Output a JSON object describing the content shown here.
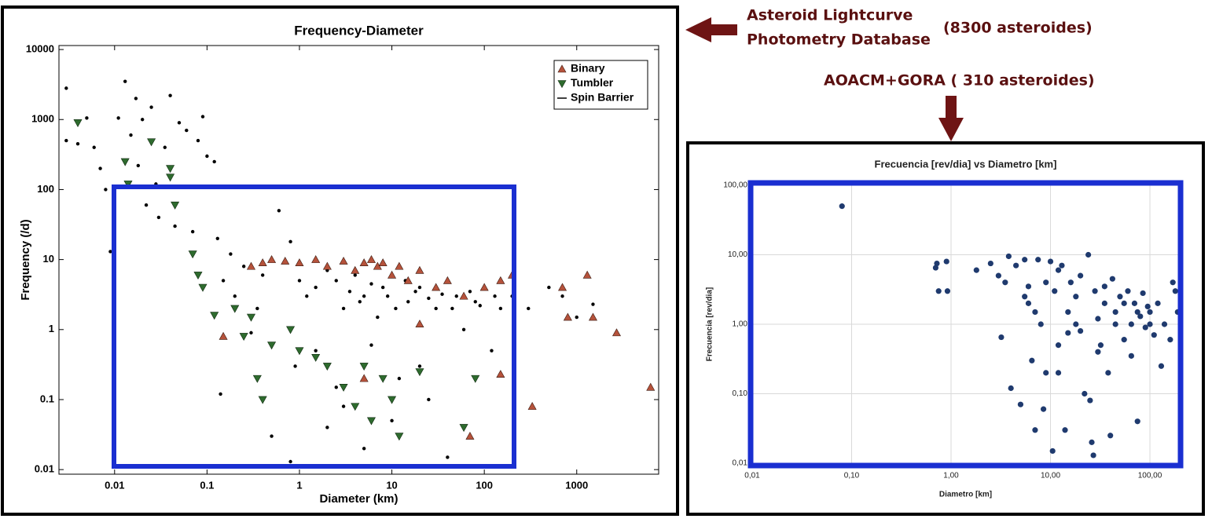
{
  "annotations": [
    "Asteroid Lightcurve",
    "Photometry Database",
    "(8300 asteroides)",
    "AOACM+GORA ( 310 asteroides)"
  ],
  "chart_data": [
    {
      "type": "scatter",
      "title": "Frequency-Diameter",
      "x_label": "Diameter (km)",
      "y_label": "Frequency (/d)",
      "log_x": true,
      "log_y": true,
      "grid": false,
      "legend": "upper right",
      "xlim": [
        0.0025,
        7700
      ],
      "ylim": [
        0.0086,
        11400
      ],
      "xticks": [
        0.01,
        0.1,
        1,
        10,
        100,
        1000
      ],
      "yticks": [
        10000,
        1000,
        100,
        10,
        1,
        0.1,
        0.01
      ],
      "series": [
        {
          "color": "#000000",
          "marker": "dot",
          "x": [
            0.003,
            0.003,
            0.004,
            0.005,
            0.006,
            0.007,
            0.008,
            0.009,
            0.011,
            0.013,
            0.015,
            0.017,
            0.018,
            0.02,
            0.022,
            0.025,
            0.028,
            0.03,
            0.035,
            0.04,
            0.045,
            0.05,
            0.06,
            0.07,
            0.08,
            0.09,
            0.1,
            0.12,
            0.13,
            0.15,
            0.18,
            0.2,
            0.25,
            0.3,
            0.35,
            0.4,
            0.5,
            0.6,
            0.8,
            0.8,
            1,
            1.2,
            1.5,
            2,
            2,
            3,
            3,
            4,
            5,
            5,
            7,
            8,
            10,
            10,
            15,
            20,
            20,
            30,
            40,
            50,
            60,
            80,
            100,
            120,
            150,
            200,
            300,
            500,
            700,
            1000,
            1500,
            0.14,
            0.9,
            2.5,
            6,
            12,
            25,
            1.5,
            2.5,
            3.5,
            4.5,
            6,
            9,
            11,
            14,
            18,
            25,
            35,
            45,
            70,
            90,
            130
          ],
          "values": [
            2800,
            500,
            450,
            1050,
            400,
            200,
            100,
            13,
            1050,
            3500,
            600,
            2000,
            220,
            1000,
            60,
            1500,
            120,
            40,
            400,
            2200,
            30,
            900,
            700,
            25,
            500,
            1100,
            300,
            250,
            20,
            5,
            12,
            3,
            8,
            0.9,
            2,
            6,
            0.03,
            50,
            18,
            0.013,
            5,
            3,
            0.5,
            7,
            0.04,
            2,
            0.08,
            6,
            3,
            0.02,
            1.5,
            4,
            6,
            0.05,
            2.5,
            4,
            0.3,
            2,
            0.015,
            3,
            1,
            2.5,
            4,
            0.5,
            2,
            3,
            2,
            4,
            3,
            1.5,
            2.3,
            0.12,
            0.3,
            0.15,
            0.6,
            0.2,
            0.1,
            4,
            5,
            3.5,
            2.5,
            4.5,
            3,
            2,
            5,
            3.5,
            2.8,
            3.2,
            2,
            3.5,
            2.2,
            3
          ]
        },
        {
          "name": "Binary",
          "color": "#b5523b",
          "marker": "triangle-up",
          "x": [
            0.15,
            0.3,
            0.4,
            0.5,
            0.7,
            1,
            1.5,
            2,
            3,
            4,
            5,
            6,
            7,
            8,
            10,
            12,
            15,
            20,
            30,
            40,
            60,
            100,
            150,
            200,
            700,
            800,
            1300,
            1500,
            2700,
            6300,
            330,
            150,
            70,
            5,
            20
          ],
          "values": [
            0.8,
            8,
            9,
            10,
            9.5,
            9,
            10,
            8,
            9.5,
            7,
            9,
            10,
            8,
            9,
            6,
            8,
            5,
            7,
            4,
            5,
            3,
            4,
            5,
            6,
            4,
            1.5,
            6,
            1.5,
            0.9,
            0.15,
            0.08,
            0.23,
            0.03,
            0.2,
            1.2
          ]
        },
        {
          "name": "Tumbler",
          "color": "#2e6b2e",
          "marker": "triangle-down",
          "x": [
            0.004,
            0.013,
            0.014,
            0.025,
            0.04,
            0.04,
            0.045,
            0.07,
            0.08,
            0.09,
            0.12,
            0.2,
            0.25,
            0.3,
            0.35,
            0.4,
            0.5,
            0.8,
            1,
            1.5,
            2,
            3,
            4,
            5,
            6,
            8,
            10,
            12,
            20,
            60,
            80
          ],
          "values": [
            900,
            250,
            120,
            480,
            200,
            150,
            60,
            12,
            6,
            4,
            1.6,
            2,
            0.8,
            1.5,
            0.2,
            0.1,
            0.6,
            1,
            0.5,
            0.4,
            0.3,
            0.15,
            0.08,
            0.3,
            0.05,
            0.2,
            0.1,
            0.03,
            0.25,
            0.04,
            0.2
          ]
        },
        {
          "name": "Spin Barrier",
          "color": "#000000",
          "marker": "line"
        }
      ]
    },
    {
      "type": "scatter",
      "title": "Frecuencia [rev/dia] vs Diametro [km]",
      "x_label": "Diametro [km]",
      "y_label": "Frecuencia [rev/dia]",
      "log_x": true,
      "log_y": true,
      "grid": true,
      "xlim": [
        0.01,
        196
      ],
      "ylim": [
        0.01,
        100
      ],
      "xticks": [
        {
          "value": 0.01,
          "label": "0,01"
        },
        {
          "value": 0.1,
          "label": "0,10"
        },
        {
          "value": 1,
          "label": "1,00"
        },
        {
          "value": 10,
          "label": "10,00"
        },
        {
          "value": 100,
          "label": "100,00"
        }
      ],
      "yticks": [
        {
          "value": 0.01,
          "label": "0,01"
        },
        {
          "value": 0.1,
          "label": "0,10"
        },
        {
          "value": 1,
          "label": "1,00"
        },
        {
          "value": 10,
          "label": "10,00"
        },
        {
          "value": 100,
          "label": "100,00"
        }
      ],
      "series": [
        {
          "color": "#1f3a6e",
          "marker": "dot",
          "x": [
            0.08,
            0.7,
            0.72,
            0.75,
            0.9,
            0.92,
            1.8,
            2.5,
            3,
            3.2,
            3.5,
            3.8,
            4,
            4.5,
            5,
            5.5,
            6,
            6.5,
            7,
            7.5,
            8,
            8.5,
            9,
            10,
            10.5,
            11,
            12,
            13,
            14,
            15,
            16,
            18,
            20,
            22,
            24,
            25,
            26,
            27,
            28,
            30,
            32,
            35,
            38,
            40,
            42,
            45,
            50,
            55,
            60,
            65,
            70,
            75,
            80,
            85,
            90,
            95,
            100,
            110,
            120,
            130,
            140,
            160,
            170,
            180,
            190,
            5.5,
            6,
            7,
            9,
            12,
            18,
            20,
            30,
            35,
            45,
            55,
            65,
            75,
            100,
            12,
            15
          ],
          "values": [
            50,
            6.5,
            7.5,
            3,
            8,
            3,
            6,
            7.5,
            5,
            0.65,
            4,
            9.5,
            0.12,
            7,
            0.07,
            8.5,
            2,
            0.3,
            0.03,
            8.5,
            1,
            0.06,
            0.2,
            8,
            0.015,
            3,
            0.5,
            7,
            0.03,
            1.5,
            4,
            2.5,
            0.8,
            0.1,
            10,
            0.08,
            0.02,
            0.013,
            3,
            1.2,
            0.5,
            2,
            0.2,
            0.025,
            4.5,
            1,
            2.5,
            0.6,
            3,
            0.35,
            2,
            0.04,
            1.3,
            2.8,
            0.9,
            1.8,
            1.5,
            0.7,
            2,
            0.25,
            1,
            0.6,
            4,
            3,
            1.5,
            2.5,
            3.5,
            1.5,
            4,
            6,
            1,
            5,
            0.4,
            3.5,
            1.5,
            2,
            1,
            1.5,
            1,
            0.2,
            0.75
          ]
        }
      ]
    }
  ]
}
